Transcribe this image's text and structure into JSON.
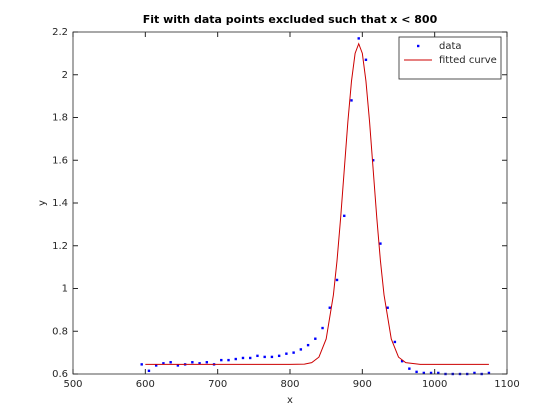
{
  "chart_data": {
    "type": "scatter",
    "title": "Fit with data points excluded such that x < 800",
    "xlabel": "x",
    "ylabel": "y",
    "xlim": [
      500,
      1100
    ],
    "xticks": [
      500,
      600,
      700,
      800,
      900,
      1000,
      1100
    ],
    "ylim": [
      0.6,
      2.2
    ],
    "yticks": [
      0.6,
      0.8,
      1,
      1.2,
      1.4,
      1.6,
      1.8,
      2,
      2.2
    ],
    "legend": "upper right",
    "series": [
      {
        "name": "data",
        "type": "scatter",
        "color": "#0000ff",
        "x": [
          595,
          605,
          615,
          625,
          635,
          645,
          655,
          665,
          675,
          685,
          695,
          705,
          715,
          725,
          735,
          745,
          755,
          765,
          775,
          785,
          795,
          805,
          815,
          825,
          835,
          845,
          855,
          865,
          875,
          885,
          895,
          905,
          915,
          925,
          935,
          945,
          955,
          965,
          975,
          985,
          995,
          1005,
          1015,
          1025,
          1035,
          1045,
          1055,
          1065,
          1075
        ],
        "values": [
          0.645,
          0.615,
          0.64,
          0.65,
          0.655,
          0.64,
          0.645,
          0.655,
          0.65,
          0.655,
          0.645,
          0.665,
          0.665,
          0.67,
          0.675,
          0.675,
          0.685,
          0.68,
          0.68,
          0.685,
          0.695,
          0.7,
          0.715,
          0.735,
          0.765,
          0.815,
          0.91,
          1.04,
          1.34,
          1.88,
          2.17,
          2.07,
          1.6,
          1.21,
          0.91,
          0.75,
          0.66,
          0.625,
          0.61,
          0.605,
          0.605,
          0.605,
          0.6,
          0.6,
          0.6,
          0.6,
          0.605,
          0.6,
          0.605
        ]
      },
      {
        "name": "fitted curve",
        "type": "line",
        "color": "#cc0000",
        "x": [
          600,
          700,
          800,
          820,
          830,
          840,
          850,
          860,
          865,
          870,
          875,
          880,
          885,
          890,
          895,
          900,
          905,
          910,
          915,
          920,
          925,
          930,
          940,
          950,
          960,
          980,
          1075
        ],
        "values": [
          0.645,
          0.645,
          0.645,
          0.646,
          0.653,
          0.679,
          0.764,
          0.97,
          1.13,
          1.33,
          1.555,
          1.78,
          1.97,
          2.1,
          2.145,
          2.1,
          1.97,
          1.78,
          1.555,
          1.33,
          1.13,
          0.97,
          0.764,
          0.679,
          0.653,
          0.645,
          0.645
        ]
      }
    ]
  }
}
